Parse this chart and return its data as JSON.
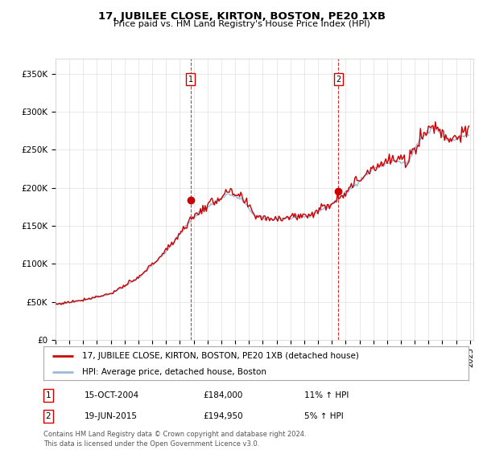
{
  "title": "17, JUBILEE CLOSE, KIRTON, BOSTON, PE20 1XB",
  "subtitle": "Price paid vs. HM Land Registry's House Price Index (HPI)",
  "ylabel_ticks": [
    "£0",
    "£50K",
    "£100K",
    "£150K",
    "£200K",
    "£250K",
    "£300K",
    "£350K"
  ],
  "ylim": [
    0,
    370000
  ],
  "yticks": [
    0,
    50000,
    100000,
    150000,
    200000,
    250000,
    300000,
    350000
  ],
  "sale1_date_num": 2004.79,
  "sale1_price": 184000,
  "sale2_date_num": 2015.46,
  "sale2_price": 194950,
  "legend_line1": "17, JUBILEE CLOSE, KIRTON, BOSTON, PE20 1XB (detached house)",
  "legend_line2": "HPI: Average price, detached house, Boston",
  "ann1_date": "15-OCT-2004",
  "ann1_price": "£184,000",
  "ann1_pct": "11% ↑ HPI",
  "ann2_date": "19-JUN-2015",
  "ann2_price": "£194,950",
  "ann2_pct": "5% ↑ HPI",
  "footer": "Contains HM Land Registry data © Crown copyright and database right 2024.\nThis data is licensed under the Open Government Licence v3.0.",
  "red_color": "#cc0000",
  "blue_color": "#99bbdd",
  "background_color": "#ffffff",
  "grid_color": "#e0e0e0"
}
